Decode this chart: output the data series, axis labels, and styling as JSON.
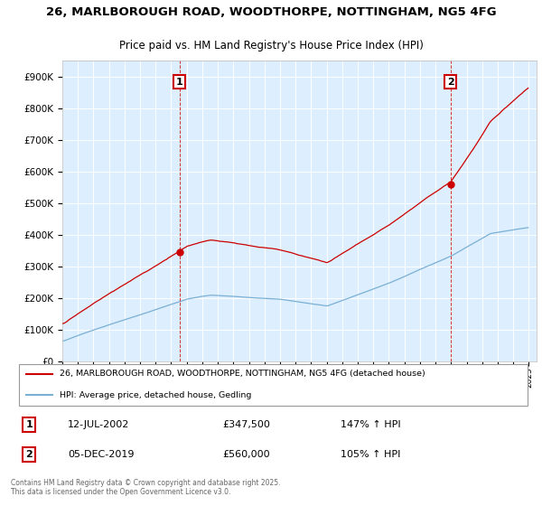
{
  "title_line1": "26, MARLBOROUGH ROAD, WOODTHORPE, NOTTINGHAM, NG5 4FG",
  "title_line2": "Price paid vs. HM Land Registry's House Price Index (HPI)",
  "red_label": "26, MARLBOROUGH ROAD, WOODTHORPE, NOTTINGHAM, NG5 4FG (detached house)",
  "blue_label": "HPI: Average price, detached house, Gedling",
  "sale1_date": "12-JUL-2002",
  "sale1_price": 347500,
  "sale1_pct": "147%",
  "sale2_date": "05-DEC-2019",
  "sale2_price": 560000,
  "sale2_pct": "105%",
  "footer": "Contains HM Land Registry data © Crown copyright and database right 2025.\nThis data is licensed under the Open Government Licence v3.0.",
  "ylim": [
    0,
    950000
  ],
  "yticks": [
    0,
    100000,
    200000,
    300000,
    400000,
    500000,
    600000,
    700000,
    800000,
    900000
  ],
  "background_color": "#ddeeff",
  "red_color": "#cc0000",
  "blue_color": "#7ab0d4",
  "grid_color": "#ffffff",
  "annotation_box_color": "#cc0000",
  "sale1_year": 2002,
  "sale1_month": 7,
  "sale2_year": 2019,
  "sale2_month": 12
}
